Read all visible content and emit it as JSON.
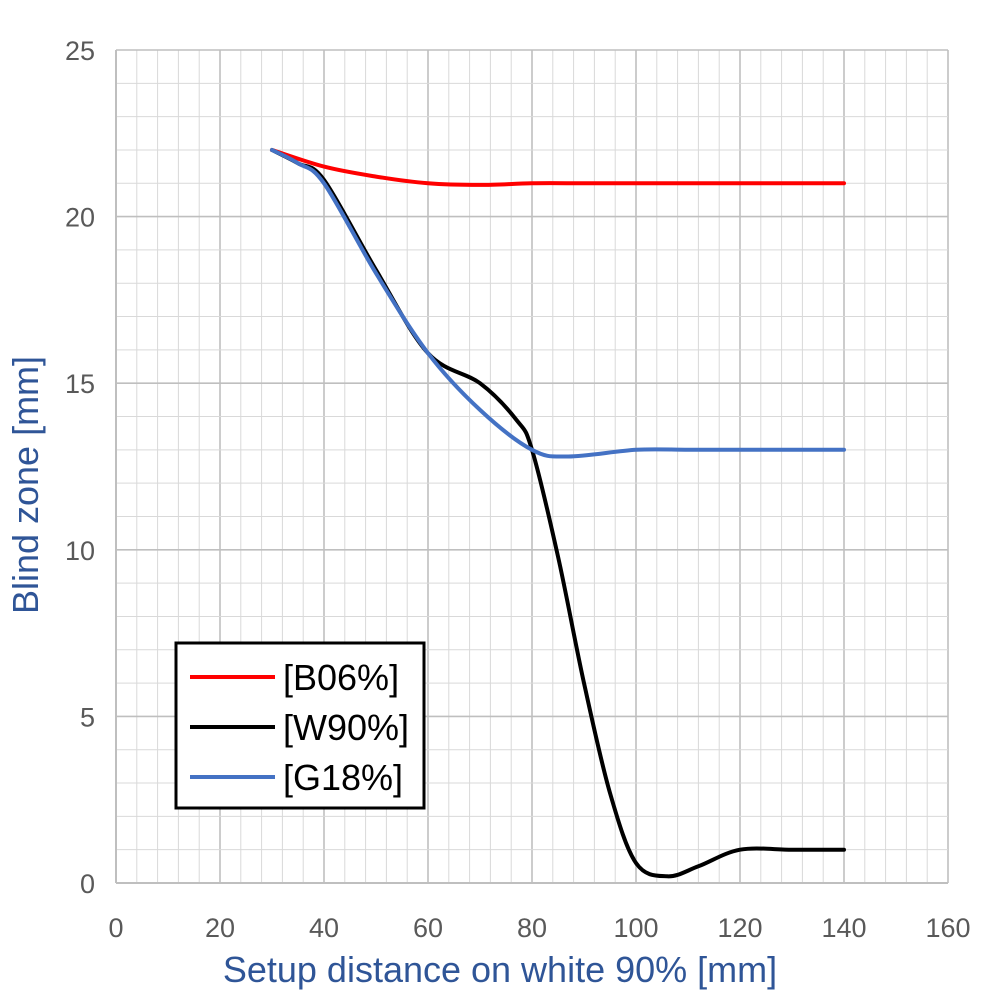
{
  "chart_data": {
    "type": "line",
    "title": "",
    "xlabel": "Setup distance on white 90% [mm]",
    "ylabel": "Blind zone [mm]",
    "xlim": [
      0,
      160
    ],
    "ylim": [
      0,
      25
    ],
    "x_ticks": [
      0,
      20,
      40,
      60,
      80,
      100,
      120,
      140,
      160
    ],
    "x_tick_labels": [
      "0",
      "20",
      "40",
      "60",
      "80",
      "100",
      "120",
      "140",
      "160"
    ],
    "y_ticks": [
      0,
      5,
      10,
      15,
      20,
      25
    ],
    "y_tick_labels": [
      "0",
      "5",
      "10",
      "15",
      "20",
      "25"
    ],
    "grid": true,
    "legend_position": "bottom-left",
    "series": [
      {
        "name": "[B06%]",
        "color": "#ff0000",
        "x": [
          30,
          40,
          50,
          60,
          70,
          80,
          90,
          100,
          110,
          120,
          130,
          140
        ],
        "y": [
          22,
          21.5,
          21.2,
          21.0,
          20.95,
          21.0,
          21.0,
          21.0,
          21.0,
          21.0,
          21.0,
          21.0
        ]
      },
      {
        "name": "[W90%]",
        "color": "#000000",
        "x": [
          30,
          35,
          40,
          50,
          60,
          70,
          77,
          80,
          85,
          90,
          95,
          100,
          106,
          112,
          120,
          130,
          140
        ],
        "y": [
          22,
          21.6,
          21.1,
          18.4,
          15.9,
          15.0,
          13.9,
          13.0,
          9.8,
          6.0,
          2.7,
          0.6,
          0.2,
          0.5,
          1.0,
          1.0,
          1.0
        ]
      },
      {
        "name": "[G18%]",
        "color": "#4472c4",
        "x": [
          30,
          35,
          40,
          50,
          60,
          70,
          80,
          87,
          100,
          110,
          120,
          130,
          140
        ],
        "y": [
          22,
          21.6,
          21.0,
          18.3,
          15.9,
          14.2,
          13.0,
          12.8,
          13.0,
          13.0,
          13.0,
          13.0,
          13.0
        ]
      }
    ]
  }
}
